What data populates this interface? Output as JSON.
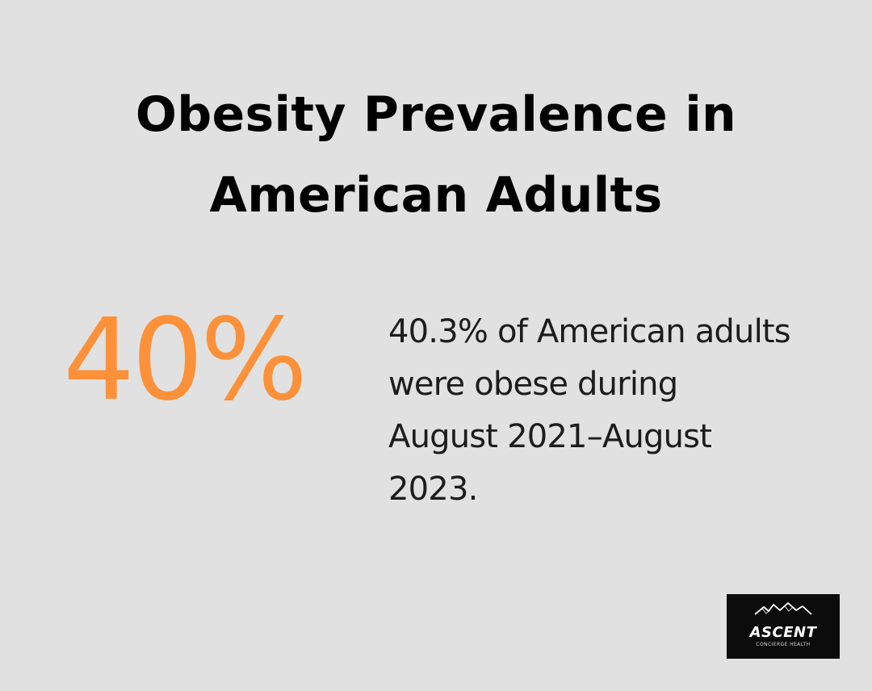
{
  "header": {
    "title_line1": "Obesity Prevalence in",
    "title_line2": "American Adults"
  },
  "stat": {
    "value": "40%",
    "description": "40.3% of American adults were obese during August 2021–August 2023."
  },
  "logo": {
    "name": "ASCENT",
    "tagline": "CONCIERGE HEALTH"
  },
  "colors": {
    "background": "#e0e1e0",
    "accent": "#fc913a",
    "title": "#000000",
    "body_text": "#1c1c1c",
    "logo_background": "#0c0c0c"
  }
}
